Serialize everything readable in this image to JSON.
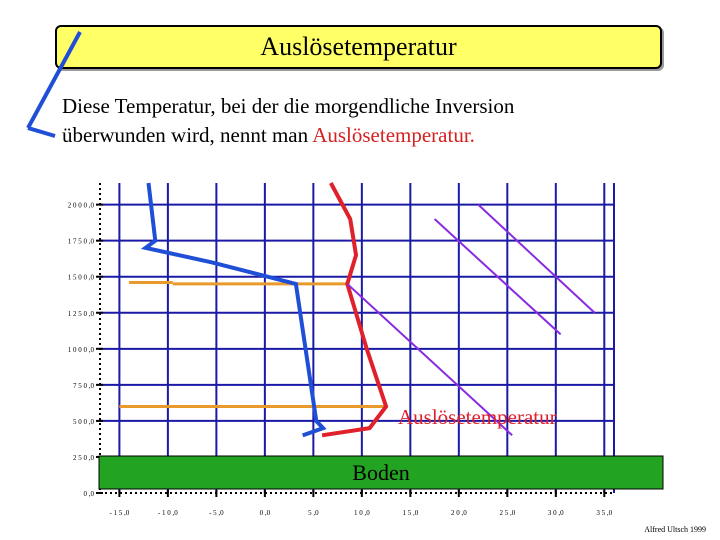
{
  "title": "Auslösetemperatur",
  "intro": {
    "line1": "Diese Temperatur, bei der die morgendliche Inversion",
    "line2_prefix": "überwunden wird, nennt man ",
    "line2_highlight": "Auslösetemperatur."
  },
  "colors": {
    "title_bg": "#ffff66",
    "grid": "#1a1aa6",
    "blue_line": "#1f4fd6",
    "red_line": "#e0202a",
    "purple_line": "#8a2be2",
    "orange_line": "#e89a2a",
    "ground": "#22a322",
    "label_red": "#e0202a"
  },
  "diagram": {
    "annotation": "Auslösetemperatur",
    "ground_label": "Boden"
  },
  "chart_data": {
    "type": "line",
    "title": "",
    "xlabel": "",
    "ylabel": "",
    "xlim": [
      -17,
      36
    ],
    "ylim": [
      0,
      2150
    ],
    "x_ticks": [
      -15,
      -10,
      -5,
      0,
      5,
      10,
      15,
      20,
      25,
      30,
      35
    ],
    "x_tick_labels": [
      "- 1 5 ,0",
      "- 1 0 ,0",
      "- 5 ,0",
      "0 ,0",
      "5 ,0",
      "1 0 ,0",
      "1 5 ,0",
      "2 0 ,0",
      "2 5 ,0",
      "3 0 ,0",
      "3 5 ,0"
    ],
    "y_ticks": [
      0,
      250,
      500,
      750,
      1000,
      1250,
      1500,
      1750,
      2000
    ],
    "y_tick_labels": [
      "0 ,0",
      "2 5 0 ,0",
      "5 0 0 ,0",
      "7 5 0 ,0",
      "1 0 0 0 ,0",
      "1 2 5 0 ,0",
      "1 5 0 0 ,0",
      "1 7 5 0 ,0",
      "2 0 0 0 ,0"
    ],
    "grid": true,
    "series": [
      {
        "color": "#1f4fd6",
        "x": [
          -12.0,
          -11.3,
          -12.3,
          -5.5,
          3.2,
          5.3,
          6.0,
          3.9
        ],
        "y": [
          2150,
          1750,
          1700,
          1600,
          1450,
          500,
          450,
          400
        ]
      },
      {
        "color": "#e0202a",
        "x": [
          6.8,
          8.8,
          9.4,
          8.5,
          10.5,
          12.5,
          10.8,
          5.9
        ],
        "y": [
          2150,
          1900,
          1650,
          1450,
          1000,
          600,
          450,
          400
        ]
      },
      {
        "color": "#8a2be2",
        "x": [
          8.5,
          25.5
        ],
        "y": [
          1450,
          400
        ]
      },
      {
        "color": "#8a2be2",
        "x": [
          17.5,
          30.5
        ],
        "y": [
          1900,
          1100
        ]
      },
      {
        "color": "#8a2be2",
        "x": [
          22.0,
          34.0
        ],
        "y": [
          2000,
          1250
        ]
      }
    ],
    "markers": [
      {
        "color": "#e89a2a",
        "x": [
          -14.0,
          -9.5
        ],
        "y": [
          1460,
          1460
        ]
      },
      {
        "color": "#e89a2a",
        "x": [
          -9.5,
          8.5
        ],
        "y": [
          1450,
          1450
        ]
      },
      {
        "color": "#e89a2a",
        "x": [
          -15.0,
          12.5
        ],
        "y": [
          600,
          600
        ]
      }
    ]
  },
  "credit": "Alfred Ultsch 1999"
}
